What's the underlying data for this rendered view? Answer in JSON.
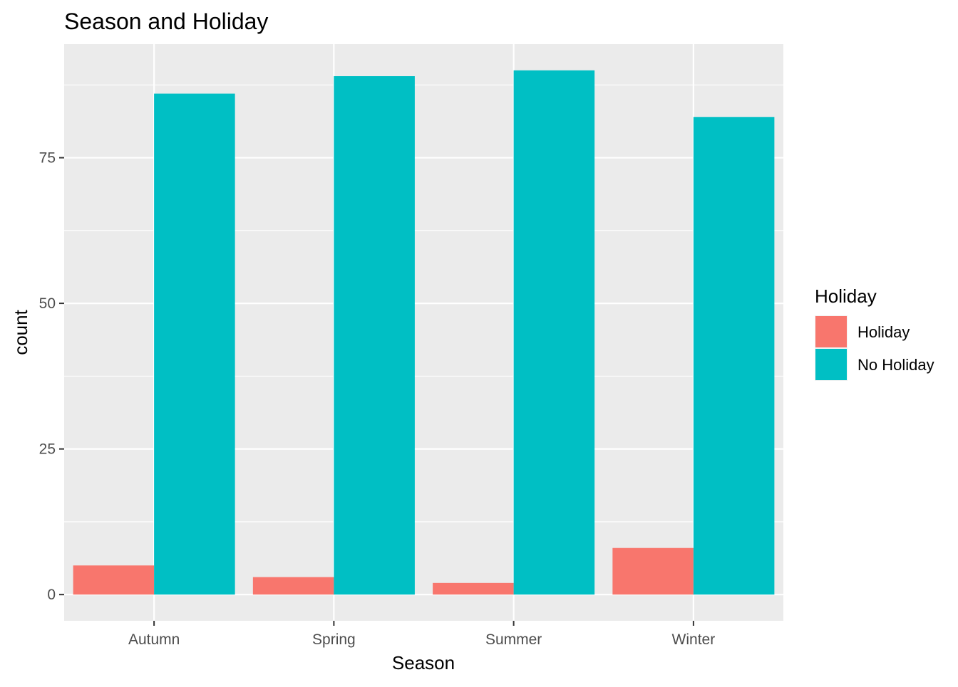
{
  "chart_data": {
    "type": "bar",
    "title": "Season and Holiday",
    "xlabel": "Season",
    "ylabel": "count",
    "categories": [
      "Autumn",
      "Spring",
      "Summer",
      "Winter"
    ],
    "series": [
      {
        "name": "Holiday",
        "values": [
          5,
          3,
          2,
          8
        ],
        "color": "#F8766D"
      },
      {
        "name": "No Holiday",
        "values": [
          86,
          89,
          90,
          82
        ],
        "color": "#00BFC4"
      }
    ],
    "ylim": [
      -4.5,
      94.5
    ],
    "yticks": [
      0,
      25,
      50,
      75
    ],
    "grid": true,
    "legend": {
      "title": "Holiday",
      "placement": "right"
    },
    "panel_background": "#EBEBEB",
    "grid_color": "#FFFFFF"
  }
}
